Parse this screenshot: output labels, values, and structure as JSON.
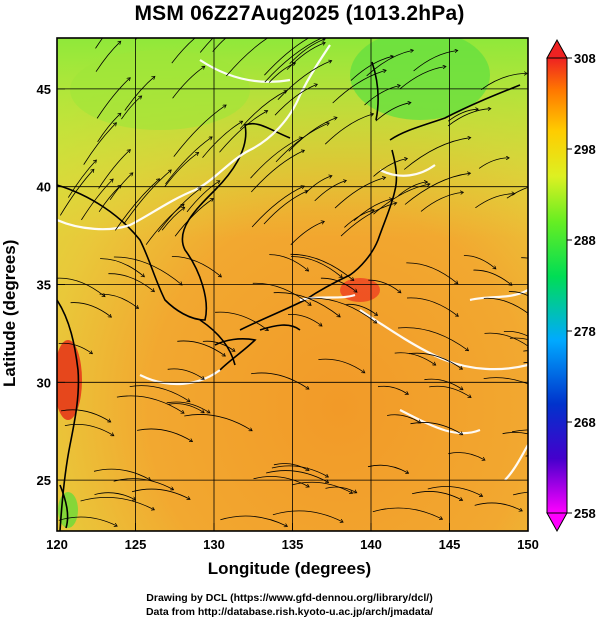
{
  "title": "MSM 06Z27Aug2025 (1013.2hPa)",
  "map": {
    "x_axis_label": "Longitude (degrees)",
    "y_axis_label": "Latitude  (degrees)",
    "lon_ticks": [
      "120",
      "125",
      "130",
      "135",
      "140",
      "145",
      "150"
    ],
    "lat_ticks": [
      "25",
      "30",
      "35",
      "40",
      "45"
    ],
    "lon_range": [
      120,
      150
    ],
    "lat_range": [
      22.4,
      47.6
    ],
    "gridlines": true
  },
  "colorbar": {
    "labels": [
      "308",
      "298",
      "288",
      "278",
      "268",
      "258"
    ],
    "min": 258,
    "max": 308,
    "colors": [
      "#ff00ff",
      "#0000cc",
      "#00aaff",
      "#00ff66",
      "#ccff00",
      "#ffcc00",
      "#ff6600",
      "#ee2222"
    ]
  },
  "credits": {
    "line1": "Drawing by DCL (https://www.gfd-dennou.org/library/dcl/)",
    "line2": "Data from http://database.rish.kyoto-u.ac.jp/arch/jmadata/"
  }
}
